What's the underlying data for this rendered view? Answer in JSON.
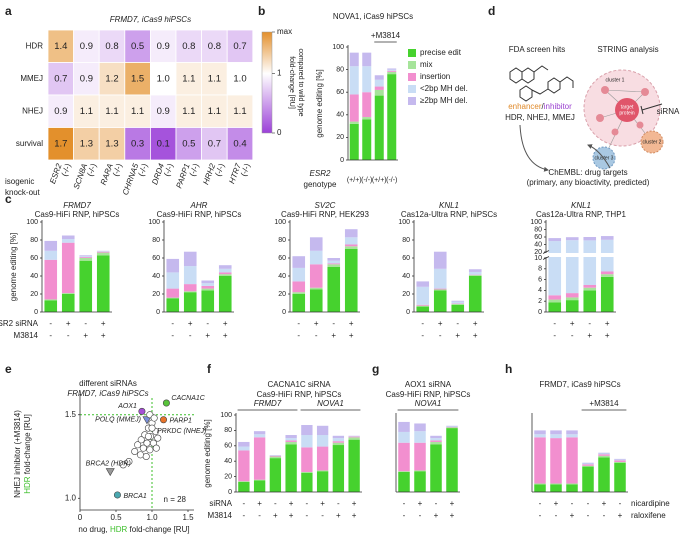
{
  "chart_data": [
    {
      "type": "heatmap",
      "label": "a",
      "title": "FRMD7, iCas9 hiPSCs",
      "rows": [
        "HDR",
        "MMEJ",
        "NHEJ",
        "survival"
      ],
      "columns": [
        "ESR2",
        "SCN8A",
        "RARA",
        "CHRNA5",
        "DRD4",
        "PARP1",
        "HRH2",
        "HTR7"
      ],
      "column_suffix": "(-/-)",
      "values": [
        [
          1.4,
          0.9,
          0.8,
          0.5,
          0.9,
          0.8,
          0.8,
          0.7
        ],
        [
          0.7,
          0.9,
          1.2,
          1.5,
          1.0,
          1.1,
          1.1,
          1.0
        ],
        [
          0.9,
          1.1,
          1.1,
          1.1,
          0.9,
          1.1,
          1.1,
          1.1
        ],
        [
          1.7,
          1.3,
          1.3,
          0.3,
          0.1,
          0.5,
          0.7,
          0.4
        ]
      ],
      "value_labels": [
        [
          "1.4",
          "0.9",
          "0.8",
          "0.5",
          "0.9",
          "0.8",
          "0.8",
          "0.7"
        ],
        [
          "0.7",
          "0.9",
          "1.2",
          "1.5",
          "1.0",
          "1.1",
          "1.1",
          "1.0"
        ],
        [
          "0.9",
          "1.1",
          "1.1",
          "1.1",
          "0.9",
          "1.1",
          "1.1",
          "1.1"
        ],
        [
          "1.7",
          "1.3",
          "1.3",
          "0.3",
          "0.1",
          "0.5",
          "0.7",
          "0.4"
        ]
      ],
      "colorbar": {
        "lim": [
          0,
          1.7
        ],
        "ticks": [
          {
            "value": 1.7,
            "label": "max"
          },
          1,
          0
        ],
        "colors": [
          "#9b40d8",
          "#ffffff",
          "#e3902c"
        ],
        "label": [
          "fold-change [RU]",
          "compared to wild type"
        ]
      },
      "side_label": [
        "isogenic",
        "knock-out"
      ]
    },
    {
      "type": "stacked_bar",
      "label": "b",
      "title": "NOVA1, iCas9 hiPSCs",
      "ylabel": "genome editing [%]",
      "ylim": [
        0,
        100
      ],
      "yticks": [
        0,
        20,
        40,
        60,
        80,
        100
      ],
      "categories": [
        "(+/+)",
        "(-/-)",
        "(+/+)",
        "(-/-)"
      ],
      "xlabel": [
        "ESR2",
        "genotype"
      ],
      "brackets": [
        {
          "label": "+M3814",
          "bars": [
            2,
            3
          ]
        }
      ],
      "legend": true,
      "series": [
        {
          "name": "precise edit",
          "color": "#46d22e",
          "values": [
            32,
            36,
            57,
            76
          ]
        },
        {
          "name": "mix",
          "color": "#a6e49a",
          "values": [
            2,
            2,
            5,
            2
          ]
        },
        {
          "name": "insertion",
          "color": "#f28fcf",
          "values": [
            24,
            22,
            3,
            1
          ]
        },
        {
          "name": "<2bp MH del.",
          "color": "#c9ddf5",
          "values": [
            25,
            23,
            6,
            1
          ]
        },
        {
          "name": "≥2bp MH del.",
          "color": "#c5b9ee",
          "values": [
            12,
            12,
            4,
            1
          ]
        }
      ]
    },
    {
      "type": "stacked_bar",
      "label": "c",
      "title": "FRMD7",
      "subtitle": "Cas9-HiFi RNP, hiPSCs",
      "ylabel": "genome editing [%]",
      "ylim": [
        0,
        100
      ],
      "yticks": [
        0,
        20,
        40,
        60,
        80,
        100
      ],
      "conditions": [
        {
          "name": "ESR2 siRNA",
          "values": [
            "-",
            "+",
            "-",
            "+"
          ]
        },
        {
          "name": "M3814",
          "values": [
            "-",
            "-",
            "+",
            "+"
          ]
        }
      ],
      "series": [
        {
          "color": "#46d22e",
          "values": [
            13,
            20,
            57,
            63
          ]
        },
        {
          "color": "#a6e49a",
          "values": [
            1,
            1,
            3,
            3
          ]
        },
        {
          "color": "#f28fcf",
          "values": [
            44,
            56,
            1,
            1
          ]
        },
        {
          "color": "#c9ddf5",
          "values": [
            10,
            4,
            1,
            0.5
          ]
        },
        {
          "color": "#c5b9ee",
          "values": [
            11,
            4,
            1,
            0.5
          ]
        }
      ]
    },
    {
      "type": "stacked_bar",
      "title": "AHR",
      "subtitle": "Cas9-HiFi RNP, hiPSCs",
      "ylim": [
        0,
        100
      ],
      "yticks": [
        0,
        20,
        40,
        60,
        80,
        100
      ],
      "conditions": [
        {
          "values": [
            "-",
            "+",
            "-",
            "+"
          ]
        },
        {
          "values": [
            "-",
            "-",
            "+",
            "+"
          ]
        }
      ],
      "series": [
        {
          "color": "#46d22e",
          "values": [
            15,
            22,
            24,
            40
          ]
        },
        {
          "color": "#a6e49a",
          "values": [
            1,
            1,
            2,
            2
          ]
        },
        {
          "color": "#f28fcf",
          "values": [
            10,
            8,
            3,
            2
          ]
        },
        {
          "color": "#c9ddf5",
          "values": [
            18,
            20,
            3,
            4
          ]
        },
        {
          "color": "#c5b9ee",
          "values": [
            15,
            16,
            3,
            4
          ]
        }
      ]
    },
    {
      "type": "stacked_bar",
      "title": "SV2C",
      "subtitle": "Cas9-HiFi RNP, HEK293",
      "ylim": [
        0,
        100
      ],
      "yticks": [
        0,
        20,
        40,
        60,
        80,
        100
      ],
      "conditions": [
        {
          "values": [
            "-",
            "+",
            "-",
            "+"
          ]
        },
        {
          "values": [
            "-",
            "-",
            "+",
            "+"
          ]
        }
      ],
      "series": [
        {
          "color": "#46d22e",
          "values": [
            20,
            25,
            50,
            70
          ]
        },
        {
          "color": "#a6e49a",
          "values": [
            2,
            2,
            3,
            3
          ]
        },
        {
          "color": "#f28fcf",
          "values": [
            12,
            26,
            1,
            2
          ]
        },
        {
          "color": "#c9ddf5",
          "values": [
            15,
            15,
            3,
            8
          ]
        },
        {
          "color": "#c5b9ee",
          "values": [
            13,
            15,
            3,
            9
          ]
        }
      ]
    },
    {
      "type": "stacked_bar",
      "title": "KNL1",
      "subtitle": "Cas12a-Ultra RNP, hiPSCs",
      "ylim": [
        0,
        100
      ],
      "yticks": [
        0,
        20,
        40,
        60,
        80,
        100
      ],
      "conditions": [
        {
          "values": [
            "-",
            "+",
            "-",
            "+"
          ]
        },
        {
          "values": [
            "-",
            "-",
            "+",
            "+"
          ]
        }
      ],
      "series": [
        {
          "color": "#46d22e",
          "values": [
            6,
            24,
            8,
            40
          ]
        },
        {
          "color": "#a6e49a",
          "values": [
            1,
            1,
            1,
            1
          ]
        },
        {
          "color": "#f28fcf",
          "values": [
            1,
            1,
            0.5,
            0.5
          ]
        },
        {
          "color": "#c9ddf5",
          "values": [
            20,
            22,
            2,
            3
          ]
        },
        {
          "color": "#c5b9ee",
          "values": [
            6,
            19,
            1,
            3
          ]
        }
      ]
    },
    {
      "type": "stacked_bar",
      "title": "KNL1",
      "subtitle": "Cas12a-Ultra RNP, THP1",
      "ylim": [
        0,
        100
      ],
      "ybreak": [
        10,
        20
      ],
      "yticks": [
        0,
        2,
        4,
        6,
        8,
        10,
        20,
        40,
        60,
        80,
        100
      ],
      "conditions": [
        {
          "values": [
            "-",
            "+",
            "-",
            "+"
          ]
        },
        {
          "values": [
            "-",
            "-",
            "+",
            "+"
          ]
        }
      ],
      "series": [
        {
          "color": "#46d22e",
          "values": [
            1.8,
            2.2,
            4,
            6.5
          ]
        },
        {
          "color": "#a6e49a",
          "values": [
            0.5,
            0.5,
            0.5,
            0.5
          ]
        },
        {
          "color": "#f28fcf",
          "values": [
            0.8,
            0.8,
            0.5,
            0.5
          ]
        },
        {
          "color": "#c9ddf5",
          "values": [
            46,
            48,
            46,
            45
          ]
        },
        {
          "color": "#c5b9ee",
          "values": [
            8,
            8,
            9,
            10
          ]
        }
      ]
    },
    {
      "type": "scatter",
      "label": "e",
      "title": "different siRNAs",
      "subtitle": "FRMD7, iCas9 hiPSCs",
      "x": [
        1.2,
        0.86,
        1.16,
        0.93,
        1.0,
        0.42,
        0.52,
        0.97,
        1.03,
        0.95,
        1.05,
        0.9,
        0.98,
        1.08,
        0.85,
        0.93,
        1.02,
        0.8,
        0.88,
        0.97,
        1.06,
        0.76,
        0.84,
        0.92,
        0.68,
        0.6,
        1.0,
        0.95
      ],
      "y": [
        1.57,
        1.52,
        1.47,
        1.47,
        1.45,
        1.16,
        1.02,
        1.5,
        1.48,
        1.42,
        1.4,
        1.38,
        1.37,
        1.36,
        1.35,
        1.33,
        1.33,
        1.32,
        1.3,
        1.29,
        1.3,
        1.28,
        1.26,
        1.25,
        1.22,
        1.2,
        1.42,
        1.37
      ],
      "point_labels": [
        "CACNA1C",
        "AOX1",
        "PARP1",
        "POLQ (MMEJ)",
        "PRKDC (NHEJ)",
        "BRCA2 (HDR)",
        "BRCA1",
        null,
        null,
        null,
        null,
        null,
        null,
        null,
        null,
        null,
        null,
        null,
        null,
        null,
        null,
        null,
        null,
        null,
        null,
        null,
        null,
        null
      ],
      "colors": [
        "#58c43a",
        "#a64fd6",
        "#e8742a",
        "#7a8fd8",
        "#ffffff",
        "#999999",
        "#4aa8b0",
        "#ffffff",
        "#ffffff",
        "#ffffff",
        "#ffffff",
        "#ffffff",
        "#ffffff",
        "#ffffff",
        "#ffffff",
        "#ffffff",
        "#ffffff",
        "#ffffff",
        "#ffffff",
        "#ffffff",
        "#ffffff",
        "#ffffff",
        "#ffffff",
        "#ffffff",
        "#ffffff",
        "#ffffff",
        "#ffffff",
        "#ffffff"
      ],
      "markers": [
        "circle",
        "circle",
        "circle",
        "triangle",
        "circle",
        "triangle",
        "circle",
        "circle",
        "circle",
        "circle",
        "circle",
        "circle",
        "circle",
        "circle",
        "circle",
        "circle",
        "circle",
        "circle",
        "circle",
        "circle",
        "circle",
        "circle",
        "circle",
        "circle",
        "circle",
        "circle",
        "circle",
        "circle"
      ],
      "xlim": [
        0,
        1.5
      ],
      "xticks": [
        0,
        0.5,
        {
          "value": 1,
          "label": "1.0"
        },
        1.5
      ],
      "ylim": [
        0.93,
        1.6
      ],
      "yticks": [
        {
          "value": 1,
          "label": "1.0"
        },
        1.5
      ],
      "xlabel": [
        "no drug, ",
        "HDR",
        " fold-change [RU]"
      ],
      "ylabel": [
        "NHEJ inhibitor (+M3814)",
        "HDR",
        " fold-change [RU]"
      ],
      "highlight_color": "#3cbf2a",
      "ref_lines": {
        "x": 1,
        "y": 1.5
      },
      "annotation": "n = 28"
    },
    {
      "type": "stacked_bar",
      "label": "f",
      "title": "CACNA1C siRNA",
      "subtitle": "Cas9-HiFi RNP, hiPSCs",
      "ylabel": "genome editing [%]",
      "ylim": [
        0,
        100
      ],
      "yticks": [
        0,
        20,
        40,
        60,
        80,
        100
      ],
      "brackets": [
        {
          "label": "FRMD7",
          "bars": [
            0,
            3
          ]
        },
        {
          "label": "NOVA1",
          "bars": [
            4,
            7
          ]
        }
      ],
      "conditions": [
        {
          "name": "siRNA",
          "values": [
            "-",
            "+",
            "-",
            "+",
            "-",
            "+",
            "-",
            "+"
          ]
        },
        {
          "name": "M3814",
          "values": [
            "-",
            "-",
            "+",
            "+",
            "-",
            "-",
            "+",
            "+"
          ]
        }
      ],
      "series": [
        {
          "color": "#46d22e",
          "values": [
            13,
            15,
            44,
            62,
            25,
            27,
            61,
            68
          ]
        },
        {
          "color": "#a6e49a",
          "values": [
            1,
            1,
            2,
            3,
            1,
            1,
            3,
            3
          ]
        },
        {
          "color": "#f28fcf",
          "values": [
            40,
            55,
            1,
            2,
            32,
            31,
            2,
            1
          ]
        },
        {
          "color": "#c9ddf5",
          "values": [
            5,
            4,
            0.5,
            3,
            16,
            15,
            4,
            0.5
          ]
        },
        {
          "color": "#c5b9ee",
          "values": [
            6,
            4,
            0.5,
            4,
            13,
            12,
            3,
            0.5
          ]
        }
      ]
    },
    {
      "type": "stacked_bar",
      "label": "g",
      "title": "AOX1 siRNA",
      "subtitle": "Cas9-HiFi RNP, hiPSCs",
      "ylim": [
        0,
        100
      ],
      "brackets": [
        {
          "label": "NOVA1",
          "bars": [
            0,
            3
          ]
        }
      ],
      "conditions": [
        {
          "values": [
            "-",
            "+",
            "-",
            "+"
          ]
        },
        {
          "values": [
            "-",
            "-",
            "+",
            "+"
          ]
        }
      ],
      "series": [
        {
          "color": "#46d22e",
          "values": [
            26,
            27,
            62,
            83
          ]
        },
        {
          "color": "#a6e49a",
          "values": [
            1,
            1,
            3,
            1
          ]
        },
        {
          "color": "#f28fcf",
          "values": [
            37,
            36,
            2,
            0.5
          ]
        },
        {
          "color": "#c9ddf5",
          "values": [
            14,
            15,
            3,
            0.5
          ]
        },
        {
          "color": "#c5b9ee",
          "values": [
            13,
            10,
            3,
            1
          ]
        }
      ]
    },
    {
      "type": "stacked_bar",
      "label": "h",
      "title": "FRMD7, iCas9 hiPSCs",
      "ylim": [
        0,
        100
      ],
      "brackets": [
        {
          "label": "+M3814",
          "bars": [
            3,
            5
          ]
        }
      ],
      "condition_side": "right",
      "conditions": [
        {
          "name": "nicardipine",
          "values": [
            "-",
            "+",
            "-",
            "-",
            "+",
            "-"
          ]
        },
        {
          "name": "raloxifene",
          "values": [
            "-",
            "-",
            "+",
            "-",
            "-",
            "+"
          ]
        }
      ],
      "series": [
        {
          "color": "#46d22e",
          "values": [
            10,
            10,
            10,
            33,
            45,
            38
          ]
        },
        {
          "color": "#a6e49a",
          "values": [
            1,
            1,
            1,
            1,
            2,
            1
          ]
        },
        {
          "color": "#f28fcf",
          "values": [
            60,
            59,
            60,
            2,
            2,
            2
          ]
        },
        {
          "color": "#c9ddf5",
          "values": [
            4,
            5,
            4,
            1,
            1,
            1
          ]
        },
        {
          "color": "#c5b9ee",
          "values": [
            5,
            5,
            5,
            1,
            1,
            1
          ]
        }
      ]
    }
  ],
  "diagram": {
    "label": "d",
    "left_title": "FDA screen hits",
    "right_title": "STRING analysis",
    "modifiers": [
      "enhancer",
      "/",
      "inhibitor"
    ],
    "pathways": "HDR, NHEJ, MMEJ",
    "sirna": "siRNA",
    "chembl": [
      "ChEMBL: drug targets",
      "(primary, any bioactivity, predicted)"
    ],
    "clusters": [
      "cluster 1",
      "cluster 2",
      "cluster 3"
    ],
    "target": [
      "target",
      "protein"
    ]
  }
}
